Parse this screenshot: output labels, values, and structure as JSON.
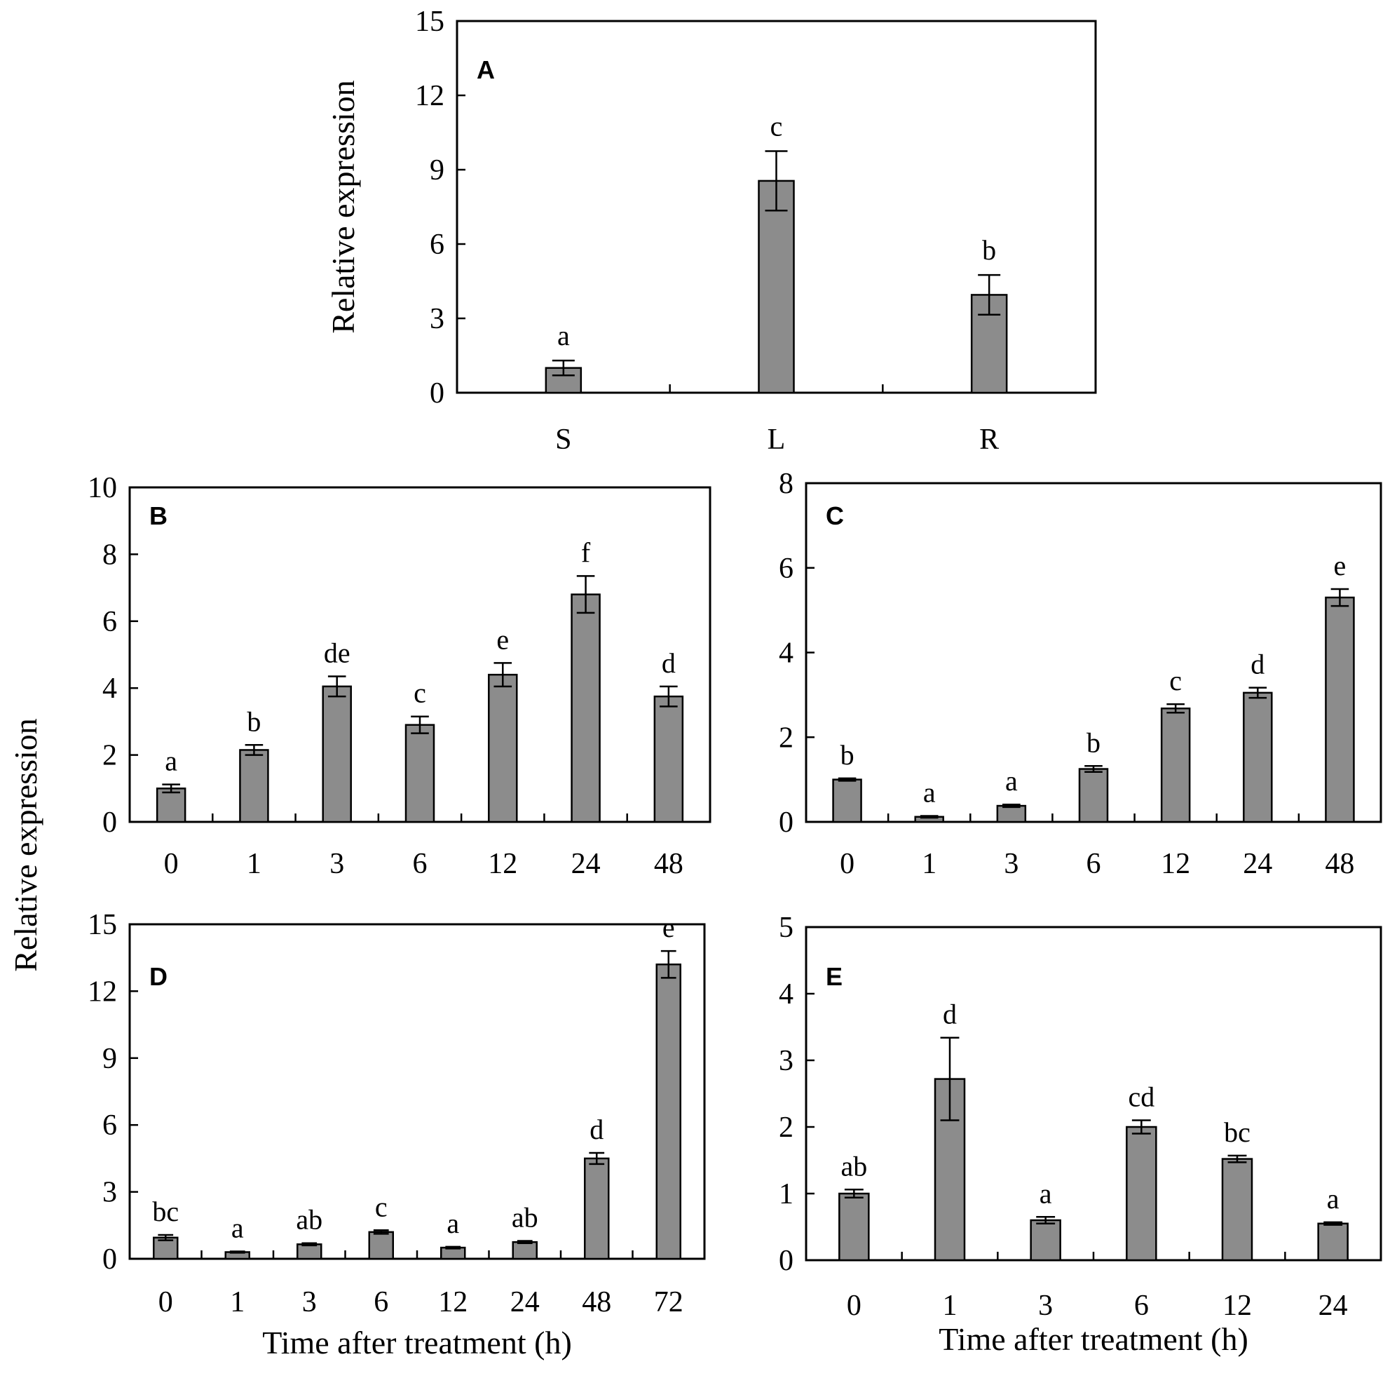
{
  "colors": {
    "bar_fill": "#8c8c8c",
    "bar_stroke": "#000000",
    "axis": "#000000"
  },
  "chart_data": [
    {
      "type": "bar",
      "panel": "A",
      "categories": [
        "S",
        "L",
        "R"
      ],
      "values": [
        1.0,
        8.55,
        3.95
      ],
      "errors": [
        0.3,
        1.2,
        0.8
      ],
      "letters": [
        "a",
        "c",
        "b"
      ],
      "ylim": [
        0,
        15
      ],
      "yticks": [
        "0",
        "3",
        "6",
        "9",
        "12",
        "15"
      ],
      "ylabel": "Relative expression",
      "xlabel": ""
    },
    {
      "type": "bar",
      "panel": "B",
      "categories": [
        "0",
        "1",
        "3",
        "6",
        "12",
        "24",
        "48"
      ],
      "values": [
        1.0,
        2.15,
        4.05,
        2.9,
        4.4,
        6.8,
        3.75
      ],
      "errors": [
        0.12,
        0.15,
        0.3,
        0.25,
        0.35,
        0.55,
        0.3
      ],
      "letters": [
        "a",
        "b",
        "de",
        "c",
        "e",
        "f",
        "d"
      ],
      "ylim": [
        0,
        10
      ],
      "yticks": [
        "0",
        "2",
        "4",
        "6",
        "8",
        "10"
      ],
      "ylabel": "",
      "xlabel": ""
    },
    {
      "type": "bar",
      "panel": "C",
      "categories": [
        "0",
        "1",
        "3",
        "6",
        "12",
        "24",
        "48"
      ],
      "values": [
        1.0,
        0.12,
        0.38,
        1.25,
        2.68,
        3.05,
        5.3
      ],
      "errors": [
        0.03,
        0.02,
        0.03,
        0.07,
        0.1,
        0.12,
        0.2
      ],
      "letters": [
        "b",
        "a",
        "a",
        "b",
        "c",
        "d",
        "e"
      ],
      "ylim": [
        0,
        8
      ],
      "yticks": [
        "0",
        "2",
        "4",
        "6",
        "8"
      ],
      "ylabel": "",
      "xlabel": ""
    },
    {
      "type": "bar",
      "panel": "D",
      "categories": [
        "0",
        "1",
        "3",
        "6",
        "12",
        "24",
        "48",
        "72"
      ],
      "values": [
        0.95,
        0.3,
        0.65,
        1.2,
        0.5,
        0.75,
        4.5,
        13.2
      ],
      "errors": [
        0.12,
        0.03,
        0.05,
        0.08,
        0.04,
        0.05,
        0.25,
        0.6
      ],
      "letters": [
        "bc",
        "a",
        "ab",
        "c",
        "a",
        "ab",
        "d",
        "e"
      ],
      "ylim": [
        0,
        15
      ],
      "yticks": [
        "0",
        "3",
        "6",
        "9",
        "12",
        "15"
      ],
      "ylabel": "",
      "xlabel": "Time after treatment (h)"
    },
    {
      "type": "bar",
      "panel": "E",
      "categories": [
        "0",
        "1",
        "3",
        "6",
        "12",
        "24"
      ],
      "values": [
        1.0,
        2.72,
        0.6,
        2.0,
        1.52,
        0.55
      ],
      "errors": [
        0.06,
        0.62,
        0.05,
        0.1,
        0.05,
        0.02
      ],
      "letters": [
        "ab",
        "d",
        "a",
        "cd",
        "bc",
        "a"
      ],
      "ylim": [
        0,
        5
      ],
      "yticks": [
        "0",
        "1",
        "2",
        "3",
        "4",
        "5"
      ],
      "ylabel": "",
      "xlabel": "Time after treatment (h)"
    }
  ],
  "shared_ylabel": "Relative expression"
}
